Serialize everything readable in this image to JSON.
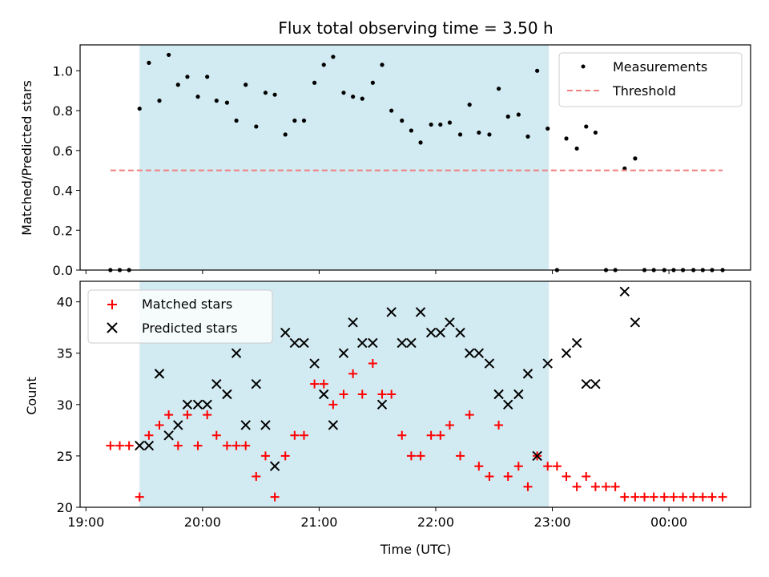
{
  "chart_data": {
    "title": "Flux total observing time = 3.50 h",
    "xlabel": "Time (UTC)",
    "x_unit": "hours since 19:00 UTC",
    "x_range": [
      -0.05,
      5.7
    ],
    "x_ticks": [
      {
        "value": 0,
        "label": "19:00"
      },
      {
        "value": 1,
        "label": "20:00"
      },
      {
        "value": 2,
        "label": "21:00"
      },
      {
        "value": 3,
        "label": "22:00"
      },
      {
        "value": 4,
        "label": "23:00"
      },
      {
        "value": 5,
        "label": "00:00"
      }
    ],
    "colors": {
      "span": "#add8e6",
      "measurements": "#000000",
      "threshold": "#f08080",
      "matched": "#ff0000",
      "predicted": "#000000"
    },
    "observing_span": [
      0.46,
      3.97
    ],
    "panels": [
      {
        "type": "scatter",
        "ylabel": "Matched/Predicted stars",
        "ylim": [
          0,
          1.13
        ],
        "y_ticks": [
          "0.0",
          "0.2",
          "0.4",
          "0.6",
          "0.8",
          "1.0"
        ],
        "legend_position": "top-right",
        "series": [
          {
            "name": "Measurements",
            "marker": "dot",
            "x": [
              0.21,
              0.29,
              0.37,
              0.46,
              0.54,
              0.63,
              0.71,
              0.79,
              0.87,
              0.96,
              1.04,
              1.12,
              1.21,
              1.29,
              1.37,
              1.46,
              1.54,
              1.62,
              1.71,
              1.79,
              1.87,
              1.96,
              2.04,
              2.12,
              2.21,
              2.29,
              2.37,
              2.46,
              2.54,
              2.62,
              2.71,
              2.79,
              2.87,
              2.96,
              3.04,
              3.12,
              3.21,
              3.29,
              3.37,
              3.46,
              3.54,
              3.62,
              3.71,
              3.79,
              3.87,
              3.96,
              4.04,
              4.12,
              4.21,
              4.29,
              4.37,
              4.46,
              4.54,
              4.62,
              4.71,
              4.79,
              4.87,
              4.96,
              5.04,
              5.12,
              5.21,
              5.29,
              5.37,
              5.46
            ],
            "y": [
              0,
              0,
              0,
              0.81,
              1.04,
              0.85,
              1.08,
              0.93,
              0.97,
              0.87,
              0.97,
              0.85,
              0.84,
              0.75,
              0.93,
              0.72,
              0.89,
              0.88,
              0.68,
              0.75,
              0.75,
              0.94,
              1.03,
              1.07,
              0.89,
              0.87,
              0.86,
              0.94,
              1.03,
              0.8,
              0.75,
              0.7,
              0.64,
              0.73,
              0.73,
              0.74,
              0.68,
              0.83,
              0.69,
              0.68,
              0.91,
              0.77,
              0.78,
              0.67,
              1.0,
              0.71,
              0,
              0.66,
              0.61,
              0.72,
              0.69,
              0,
              0,
              0.51,
              0.56,
              0,
              0,
              0,
              0,
              0,
              0,
              0,
              0,
              0
            ]
          },
          {
            "name": "Threshold",
            "marker": "dashed-line",
            "x": [
              0.21,
              5.46
            ],
            "y": [
              0.5,
              0.5
            ]
          }
        ]
      },
      {
        "type": "scatter",
        "ylabel": "Count",
        "ylim": [
          20,
          42
        ],
        "y_ticks": [
          "20",
          "25",
          "30",
          "35",
          "40"
        ],
        "legend_position": "top-left",
        "series": [
          {
            "name": "Matched stars",
            "marker": "plus",
            "x": [
              0.21,
              0.29,
              0.37,
              0.46,
              0.54,
              0.63,
              0.71,
              0.79,
              0.87,
              0.96,
              1.04,
              1.12,
              1.21,
              1.29,
              1.37,
              1.46,
              1.54,
              1.62,
              1.71,
              1.79,
              1.87,
              1.96,
              2.04,
              2.12,
              2.21,
              2.29,
              2.37,
              2.46,
              2.54,
              2.62,
              2.71,
              2.79,
              2.87,
              2.96,
              3.04,
              3.12,
              3.21,
              3.29,
              3.37,
              3.46,
              3.54,
              3.62,
              3.71,
              3.79,
              3.87,
              3.96,
              4.04,
              4.12,
              4.21,
              4.29,
              4.37,
              4.46,
              4.54,
              4.62,
              4.71,
              4.79,
              4.87,
              4.96,
              5.04,
              5.12,
              5.21,
              5.29,
              5.37,
              5.46
            ],
            "y": [
              26,
              26,
              26,
              21,
              27,
              28,
              29,
              26,
              29,
              26,
              29,
              27,
              26,
              26,
              26,
              23,
              25,
              21,
              25,
              27,
              27,
              32,
              32,
              30,
              31,
              33,
              31,
              34,
              31,
              31,
              27,
              25,
              25,
              27,
              27,
              28,
              25,
              29,
              24,
              23,
              28,
              23,
              24,
              22,
              25,
              24,
              24,
              23,
              22,
              23,
              22,
              22,
              22,
              21,
              21,
              21,
              21,
              21,
              21,
              21,
              21,
              21,
              21,
              21
            ]
          },
          {
            "name": "Predicted stars",
            "marker": "x",
            "x": [
              0.46,
              0.54,
              0.63,
              0.71,
              0.79,
              0.87,
              0.96,
              1.04,
              1.12,
              1.21,
              1.29,
              1.37,
              1.46,
              1.54,
              1.62,
              1.71,
              1.79,
              1.87,
              1.96,
              2.04,
              2.12,
              2.21,
              2.29,
              2.37,
              2.46,
              2.54,
              2.62,
              2.71,
              2.79,
              2.87,
              2.96,
              3.04,
              3.12,
              3.21,
              3.29,
              3.37,
              3.46,
              3.54,
              3.62,
              3.71,
              3.79,
              3.87,
              3.96,
              4.12,
              4.21,
              4.29,
              4.37,
              4.62,
              4.71
            ],
            "y": [
              26,
              26,
              33,
              27,
              28,
              30,
              30,
              30,
              32,
              31,
              35,
              28,
              32,
              28,
              24,
              37,
              36,
              36,
              34,
              31,
              28,
              35,
              38,
              36,
              36,
              30,
              39,
              36,
              36,
              39,
              37,
              37,
              38,
              37,
              35,
              35,
              34,
              31,
              30,
              31,
              33,
              25,
              34,
              35,
              36,
              32,
              32,
              41,
              38
            ]
          }
        ]
      }
    ]
  }
}
